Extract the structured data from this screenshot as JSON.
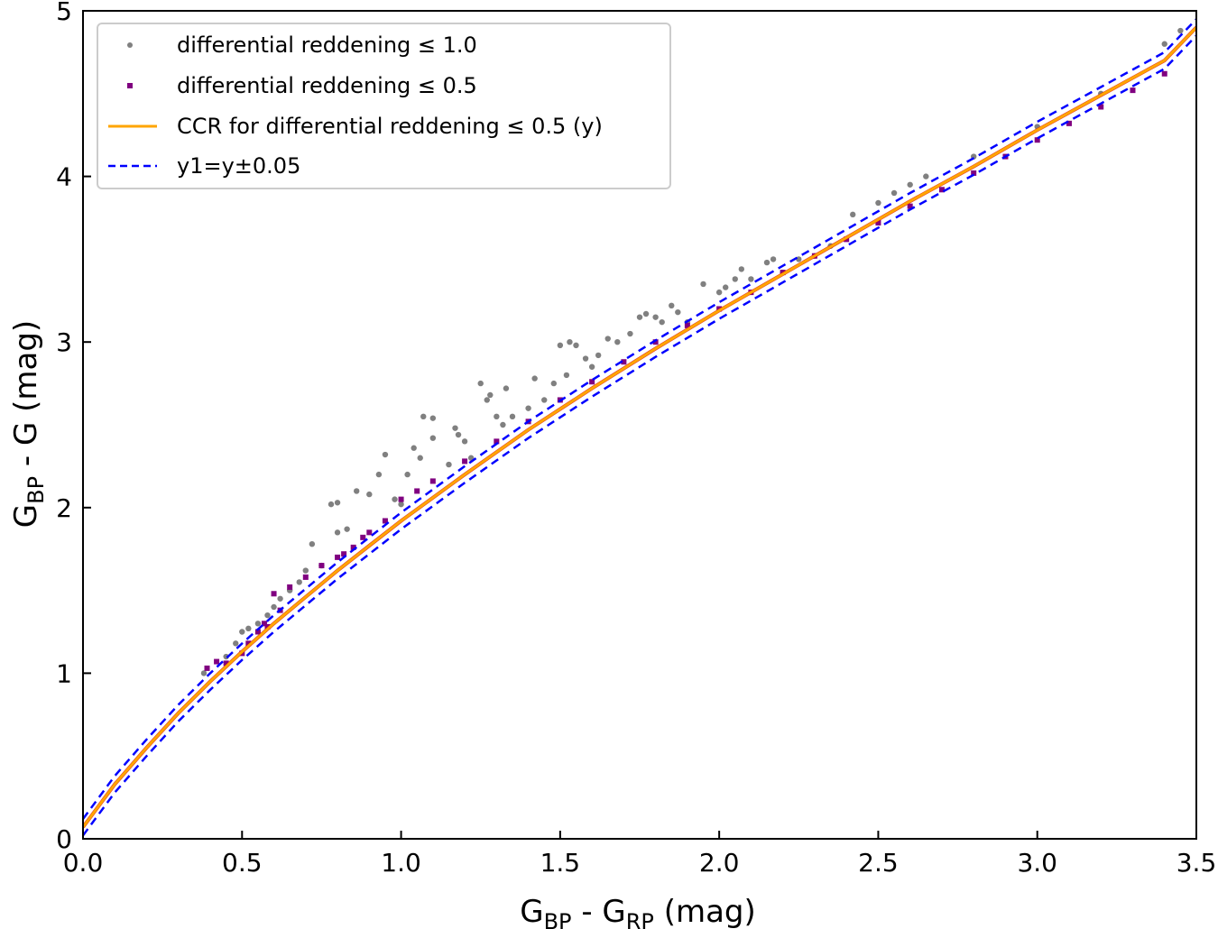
{
  "chart_data": {
    "type": "scatter",
    "xlabel": {
      "main": "G",
      "sub1": "BP",
      "mid": " - G",
      "sub2": "RP",
      "unit": " (mag)"
    },
    "ylabel": {
      "main": "G",
      "sub1": "BP",
      "rest": " - G (mag)"
    },
    "xlim": [
      0.0,
      3.5
    ],
    "ylim": [
      0,
      5
    ],
    "xticks": [
      "0.0",
      "0.5",
      "1.0",
      "1.5",
      "2.0",
      "2.5",
      "3.0",
      "3.5"
    ],
    "yticks": [
      "0",
      "1",
      "2",
      "3",
      "4",
      "5"
    ],
    "grid": false,
    "legend_position": "top-left",
    "legend": [
      {
        "label": "differential reddening ≤ 1.0",
        "marker": "dot",
        "color": "#808080"
      },
      {
        "label": "differential reddening ≤ 0.5",
        "marker": "square",
        "color": "#800080"
      },
      {
        "label": "CCR for differential reddening ≤ 0.5 (y)",
        "marker": "line",
        "color": "#ffa500"
      },
      {
        "label": "y1=y±0.05",
        "marker": "dashed",
        "color": "#0000ff"
      }
    ],
    "colors": {
      "gray": "#808080",
      "purple": "#800080",
      "orange": "#ffa500",
      "red": "#dd1100",
      "blue": "#0000ff"
    },
    "series": [
      {
        "name": "differential reddening ≤ 1.0",
        "kind": "scatter",
        "points": [
          [
            0.38,
            1.0
          ],
          [
            0.45,
            1.1
          ],
          [
            0.48,
            1.18
          ],
          [
            0.5,
            1.25
          ],
          [
            0.52,
            1.27
          ],
          [
            0.55,
            1.3
          ],
          [
            0.58,
            1.35
          ],
          [
            0.6,
            1.4
          ],
          [
            0.62,
            1.45
          ],
          [
            0.65,
            1.5
          ],
          [
            0.68,
            1.55
          ],
          [
            0.7,
            1.62
          ],
          [
            0.72,
            1.78
          ],
          [
            0.75,
            1.65
          ],
          [
            0.78,
            2.02
          ],
          [
            0.8,
            2.03
          ],
          [
            0.8,
            1.85
          ],
          [
            0.83,
            1.87
          ],
          [
            0.86,
            2.1
          ],
          [
            0.9,
            2.08
          ],
          [
            0.93,
            2.2
          ],
          [
            0.95,
            2.32
          ],
          [
            0.98,
            2.05
          ],
          [
            1.0,
            2.02
          ],
          [
            1.02,
            2.2
          ],
          [
            1.04,
            2.36
          ],
          [
            1.06,
            2.3
          ],
          [
            1.07,
            2.55
          ],
          [
            1.1,
            2.54
          ],
          [
            1.1,
            2.42
          ],
          [
            1.15,
            2.26
          ],
          [
            1.17,
            2.48
          ],
          [
            1.18,
            2.44
          ],
          [
            1.2,
            2.4
          ],
          [
            1.22,
            2.3
          ],
          [
            1.25,
            2.75
          ],
          [
            1.27,
            2.65
          ],
          [
            1.28,
            2.68
          ],
          [
            1.3,
            2.55
          ],
          [
            1.32,
            2.5
          ],
          [
            1.33,
            2.72
          ],
          [
            1.35,
            2.55
          ],
          [
            1.4,
            2.6
          ],
          [
            1.42,
            2.78
          ],
          [
            1.45,
            2.65
          ],
          [
            1.48,
            2.75
          ],
          [
            1.5,
            2.98
          ],
          [
            1.52,
            2.8
          ],
          [
            1.53,
            3.0
          ],
          [
            1.55,
            2.98
          ],
          [
            1.58,
            2.9
          ],
          [
            1.6,
            2.85
          ],
          [
            1.62,
            2.92
          ],
          [
            1.65,
            3.02
          ],
          [
            1.68,
            3.0
          ],
          [
            1.72,
            3.05
          ],
          [
            1.75,
            3.15
          ],
          [
            1.77,
            3.17
          ],
          [
            1.8,
            3.15
          ],
          [
            1.82,
            3.12
          ],
          [
            1.85,
            3.22
          ],
          [
            1.87,
            3.18
          ],
          [
            1.9,
            3.12
          ],
          [
            1.95,
            3.35
          ],
          [
            2.0,
            3.3
          ],
          [
            2.02,
            3.33
          ],
          [
            2.05,
            3.38
          ],
          [
            2.07,
            3.44
          ],
          [
            2.1,
            3.38
          ],
          [
            2.15,
            3.48
          ],
          [
            2.17,
            3.5
          ],
          [
            2.2,
            3.42
          ],
          [
            2.25,
            3.5
          ],
          [
            2.3,
            3.52
          ],
          [
            2.35,
            3.58
          ],
          [
            2.42,
            3.77
          ],
          [
            2.5,
            3.84
          ],
          [
            2.55,
            3.9
          ],
          [
            2.6,
            3.95
          ],
          [
            2.65,
            4.0
          ],
          [
            2.8,
            4.12
          ],
          [
            3.0,
            4.3
          ],
          [
            3.2,
            4.5
          ],
          [
            3.4,
            4.8
          ],
          [
            3.45,
            4.88
          ]
        ]
      },
      {
        "name": "differential reddening ≤ 0.5",
        "kind": "scatter",
        "points": [
          [
            0.39,
            1.03
          ],
          [
            0.42,
            1.07
          ],
          [
            0.45,
            1.06
          ],
          [
            0.5,
            1.12
          ],
          [
            0.52,
            1.18
          ],
          [
            0.55,
            1.25
          ],
          [
            0.57,
            1.3
          ],
          [
            0.58,
            1.28
          ],
          [
            0.6,
            1.48
          ],
          [
            0.62,
            1.38
          ],
          [
            0.65,
            1.52
          ],
          [
            0.7,
            1.58
          ],
          [
            0.75,
            1.65
          ],
          [
            0.8,
            1.7
          ],
          [
            0.82,
            1.72
          ],
          [
            0.85,
            1.76
          ],
          [
            0.88,
            1.82
          ],
          [
            0.9,
            1.85
          ],
          [
            0.95,
            1.92
          ],
          [
            1.0,
            2.05
          ],
          [
            1.05,
            2.1
          ],
          [
            1.1,
            2.16
          ],
          [
            1.2,
            2.28
          ],
          [
            1.3,
            2.4
          ],
          [
            1.4,
            2.52
          ],
          [
            1.5,
            2.65
          ],
          [
            1.6,
            2.76
          ],
          [
            1.7,
            2.88
          ],
          [
            1.8,
            3.0
          ],
          [
            1.9,
            3.1
          ],
          [
            2.0,
            3.2
          ],
          [
            2.1,
            3.3
          ],
          [
            2.2,
            3.42
          ],
          [
            2.3,
            3.52
          ],
          [
            2.4,
            3.62
          ],
          [
            2.5,
            3.72
          ],
          [
            2.6,
            3.82
          ],
          [
            2.7,
            3.92
          ],
          [
            2.8,
            4.02
          ],
          [
            2.9,
            4.12
          ],
          [
            3.0,
            4.22
          ],
          [
            3.1,
            4.32
          ],
          [
            3.2,
            4.42
          ],
          [
            3.3,
            4.52
          ],
          [
            3.4,
            4.62
          ]
        ]
      },
      {
        "name": "CCR for differential reddening ≤ 0.5 (y)",
        "kind": "line",
        "x": [
          0.0,
          0.1,
          0.2,
          0.3,
          0.4,
          0.5,
          0.6,
          0.7,
          0.8,
          0.9,
          1.0,
          1.2,
          1.4,
          1.6,
          1.8,
          2.0,
          2.2,
          2.4,
          2.6,
          2.8,
          3.0,
          3.2,
          3.4,
          3.5
        ],
        "y": [
          0.07,
          0.33,
          0.55,
          0.76,
          0.95,
          1.13,
          1.3,
          1.46,
          1.62,
          1.77,
          1.92,
          2.2,
          2.47,
          2.72,
          2.96,
          3.19,
          3.41,
          3.63,
          3.85,
          4.06,
          4.28,
          4.49,
          4.7,
          4.9
        ]
      }
    ]
  }
}
